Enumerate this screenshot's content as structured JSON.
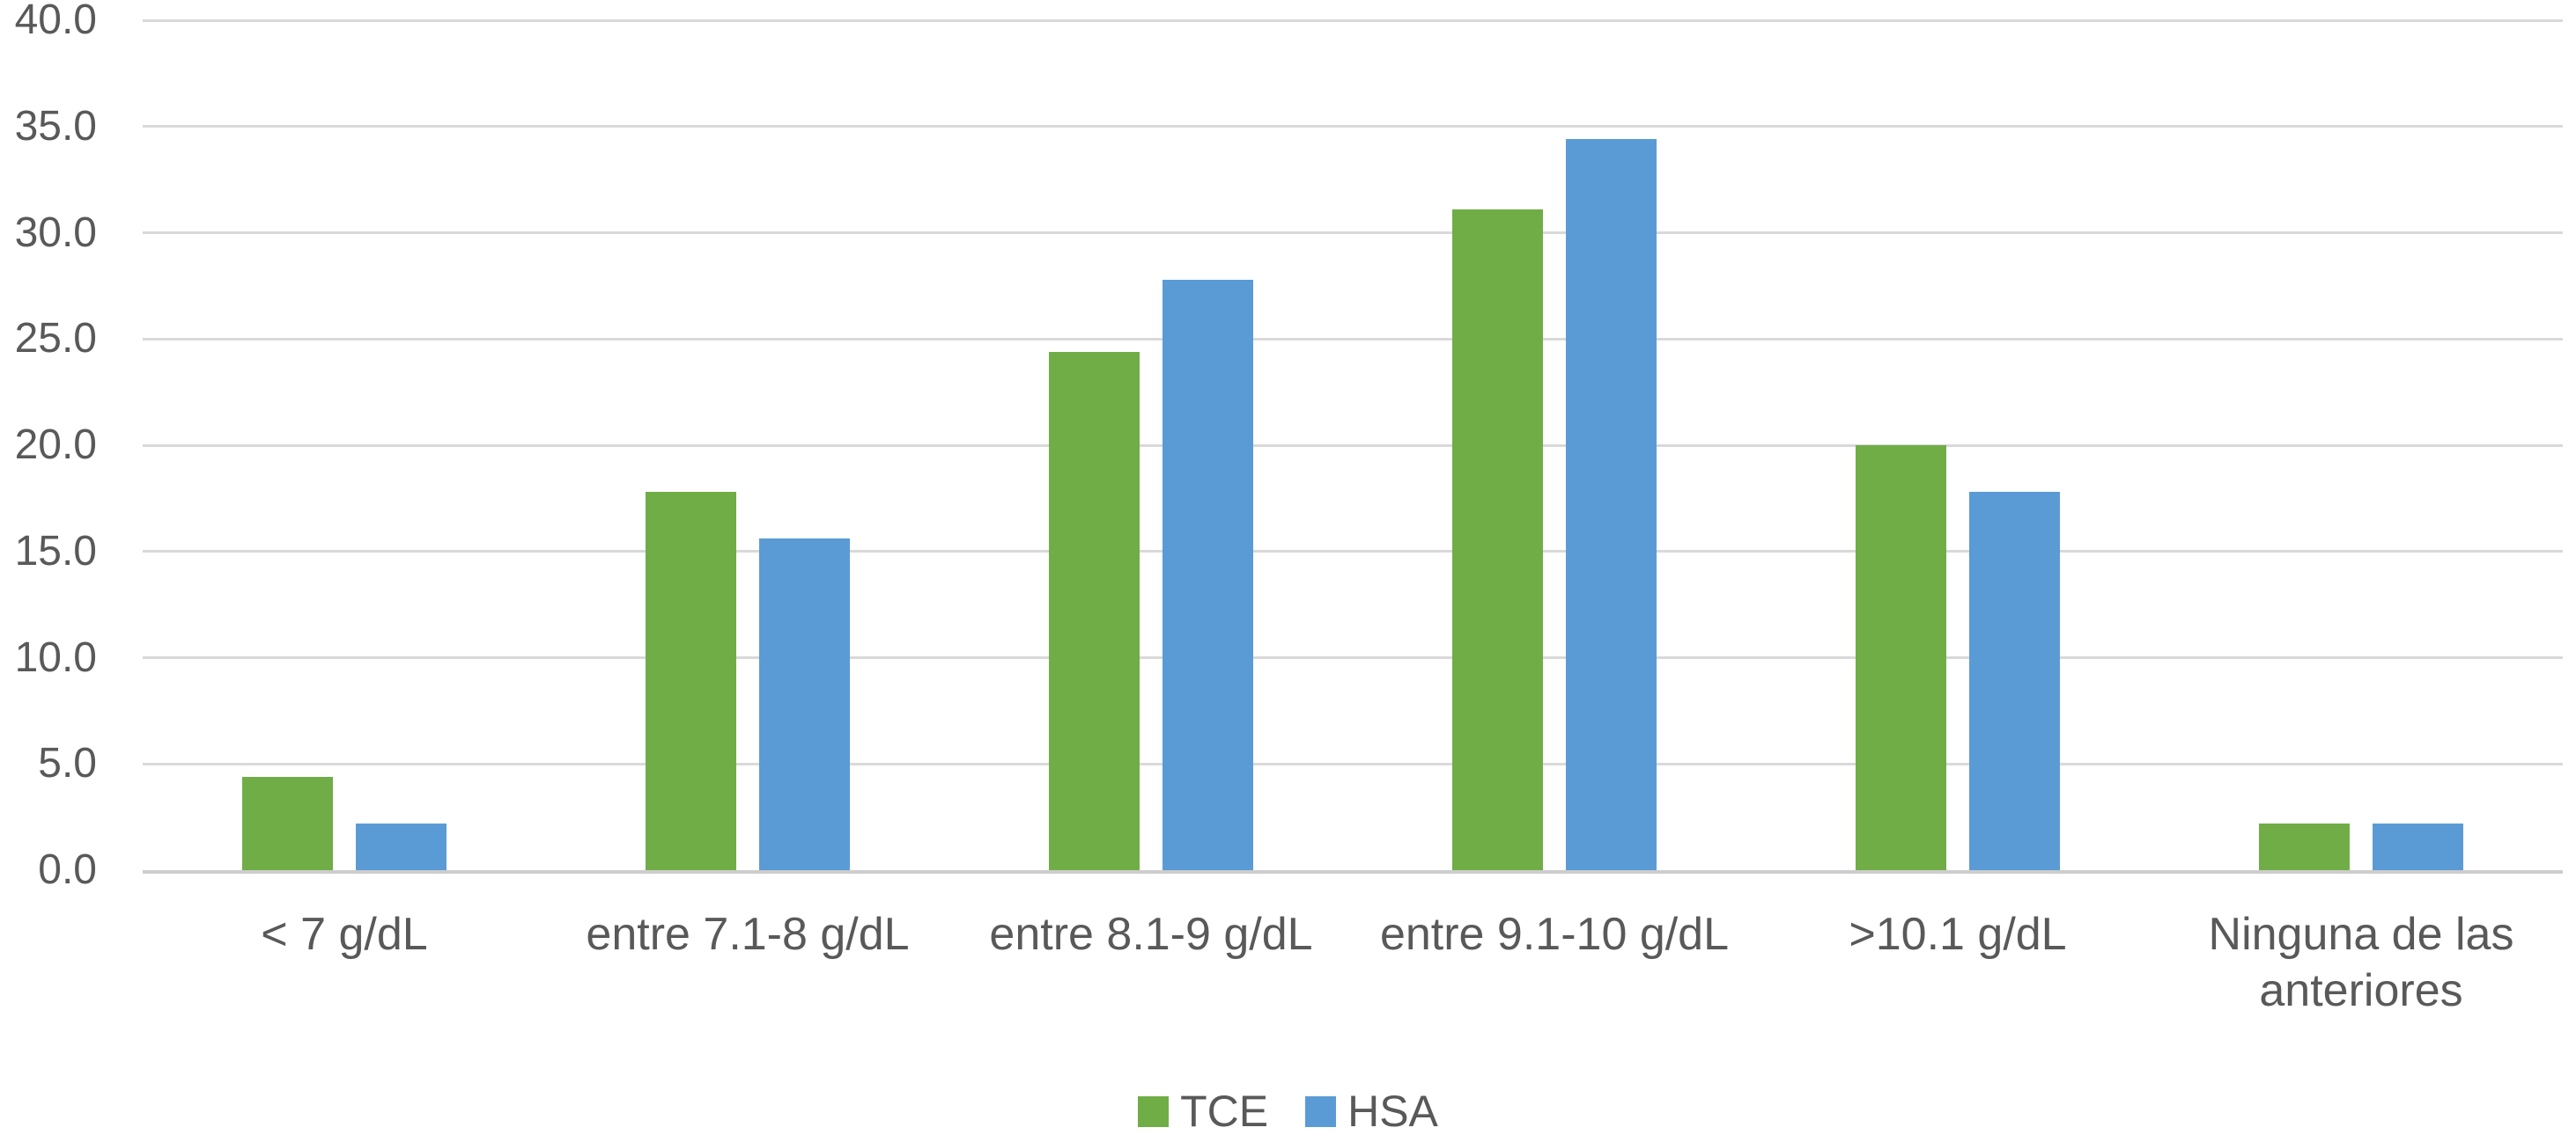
{
  "chart_data": {
    "type": "bar",
    "categories": [
      "< 7 g/dL",
      "entre 7.1-8 g/dL",
      "entre 8.1-9 g/dL",
      "entre 9.1-10 g/dL",
      ">10.1 g/dL",
      "Ninguna de las anteriores"
    ],
    "series": [
      {
        "name": "TCE",
        "color": "#70AD47",
        "values": [
          4.4,
          17.8,
          24.4,
          31.1,
          20.0,
          2.2
        ]
      },
      {
        "name": "HSA",
        "color": "#5B9BD5",
        "values": [
          2.2,
          15.6,
          27.8,
          34.4,
          17.8,
          2.2
        ]
      }
    ],
    "title": "",
    "xlabel": "",
    "ylabel": "",
    "ylim": [
      0,
      40
    ],
    "ytick_step": 5,
    "ytick_labels": [
      "0.0",
      "5.0",
      "10.0",
      "15.0",
      "20.0",
      "25.0",
      "30.0",
      "35.0",
      "40.0"
    ],
    "grid": true,
    "legend_position": "bottom",
    "legend": [
      "TCE",
      "HSA"
    ],
    "colors": {
      "gridline": "#D9D9D9",
      "axis_line": "#CDCDCD",
      "axis_text": "#595959",
      "tce_green": "#70AD47",
      "hsa_blue": "#5B9BD5"
    }
  }
}
